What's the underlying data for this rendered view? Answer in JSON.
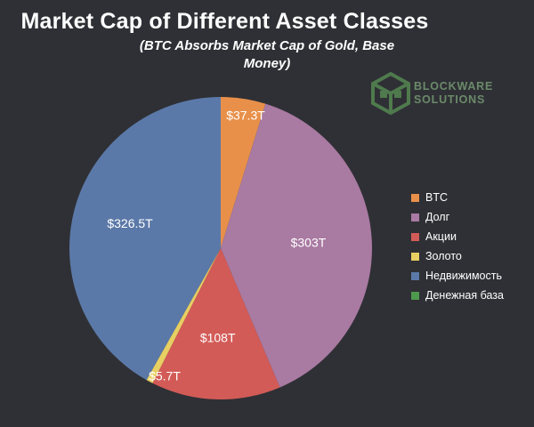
{
  "chart_data": {
    "type": "pie",
    "title": "Market Cap of Different Asset Classes",
    "subtitle": "(BTC Absorbs Market Cap of Gold, Base Money)",
    "slices": [
      {
        "name": "BTC",
        "value": 37.3,
        "label": "$37.3T",
        "color": "#e8904a"
      },
      {
        "name": "Долг",
        "value": 303,
        "label": "$303T",
        "color": "#a97aa2"
      },
      {
        "name": "Акции",
        "value": 108,
        "label": "$108T",
        "color": "#d35b57"
      },
      {
        "name": "Золото",
        "value": 5.7,
        "label": "$5.7T",
        "color": "#e7cf62"
      },
      {
        "name": "Недвижимость",
        "value": 326.5,
        "label": "$326.5T",
        "color": "#5b79a8"
      },
      {
        "name": "Денежная база",
        "value": 0,
        "label": "",
        "color": "#4d9a4d"
      }
    ],
    "legend_position": "right"
  },
  "logo": {
    "line1": "BLOCKWARE",
    "line2": "SOLUTIONS"
  }
}
